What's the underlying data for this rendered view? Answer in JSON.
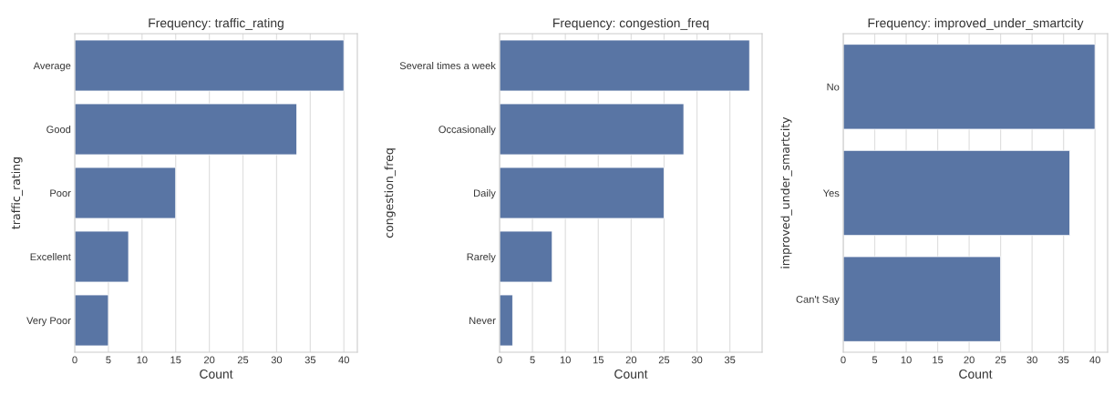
{
  "chart_data": [
    {
      "type": "bar",
      "orientation": "horizontal",
      "title": "Frequency: traffic_rating",
      "xlabel": "Count",
      "ylabel": "traffic_rating",
      "categories": [
        "Average",
        "Good",
        "Poor",
        "Excellent",
        "Very Poor"
      ],
      "values": [
        40,
        33,
        15,
        8,
        5
      ],
      "color": "#5975a4",
      "xlim": [
        0,
        42
      ],
      "xticks": [
        0,
        5,
        10,
        15,
        20,
        25,
        30,
        35,
        40
      ],
      "grid": "x"
    },
    {
      "type": "bar",
      "orientation": "horizontal",
      "title": "Frequency: congestion_freq",
      "xlabel": "Count",
      "ylabel": "congestion_freq",
      "categories": [
        "Several times a week",
        "Occasionally",
        "Daily",
        "Rarely",
        "Never"
      ],
      "values": [
        38,
        28,
        25,
        8,
        2
      ],
      "color": "#5975a4",
      "xlim": [
        0,
        39.9
      ],
      "xticks": [
        0,
        5,
        10,
        15,
        20,
        25,
        30,
        35
      ],
      "grid": "x"
    },
    {
      "type": "bar",
      "orientation": "horizontal",
      "title": "Frequency: improved_under_smartcity",
      "xlabel": "Count",
      "ylabel": "improved_under_smartcity",
      "categories": [
        "No",
        "Yes",
        "Can't Say"
      ],
      "values": [
        40,
        36,
        25
      ],
      "color": "#5975a4",
      "xlim": [
        0,
        42
      ],
      "xticks": [
        0,
        5,
        10,
        15,
        20,
        25,
        30,
        35,
        40
      ],
      "grid": "x"
    }
  ]
}
